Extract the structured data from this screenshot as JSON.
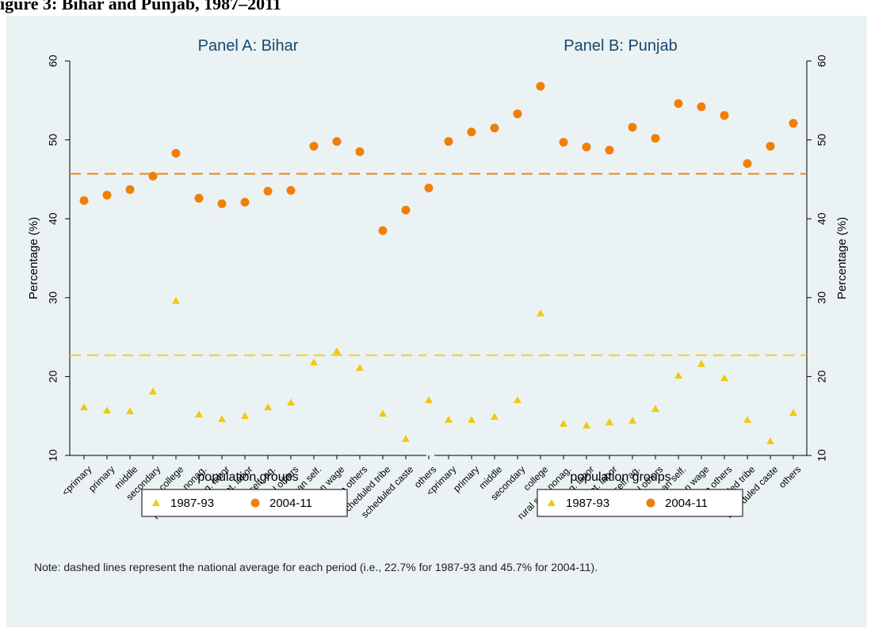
{
  "header": {
    "title": "igure 3: Bihar and Punjab, 1987–2011"
  },
  "note": "Note: dashed lines represent the national average for each period (i.e., 22.7% for 1987-93 and 45.7% for 2004-11).",
  "colors": {
    "s1987": "#f2c80f",
    "s2004": "#f07f09",
    "ref1987": "#f2c80f",
    "ref2004": "#f07f09",
    "title": "#1a476f",
    "background": "#eaf2f3"
  },
  "chart_data": [
    {
      "type": "scatter",
      "title": "Panel A: Bihar",
      "xlabel": "population groups",
      "ylabel": "Percentage (%)",
      "ylim": [
        10,
        60
      ],
      "yticks": [
        "10",
        "20",
        "30",
        "40",
        "50",
        "60"
      ],
      "axis_side": "left",
      "categories": [
        "<primary",
        "primary",
        "middle",
        "secondary",
        "college",
        "rural self. nonag.",
        "rural ag. labor",
        "rural ot. labor",
        "rural self. ag.",
        "rural others",
        "urban self.",
        "urban wage",
        "urban others",
        "scheduled tribe",
        "scheduled caste",
        "others"
      ],
      "series": [
        {
          "name": "1987-93",
          "marker": "triangle",
          "values": [
            16.1,
            15.7,
            15.6,
            18.1,
            29.6,
            15.2,
            14.6,
            15.0,
            16.1,
            16.7,
            21.8,
            23.2,
            21.1,
            15.3,
            12.1,
            17.0
          ]
        },
        {
          "name": "2004-11",
          "marker": "circle",
          "values": [
            42.3,
            43.0,
            43.7,
            45.4,
            48.3,
            42.6,
            41.9,
            42.1,
            43.5,
            43.6,
            49.2,
            49.8,
            48.5,
            38.5,
            41.1,
            43.9
          ]
        }
      ],
      "reference_lines": [
        22.7,
        45.7
      ],
      "legend": {
        "position": "bottom",
        "entries": [
          "1987-93",
          "2004-11"
        ]
      },
      "grid": false
    },
    {
      "type": "scatter",
      "title": "Panel B: Punjab",
      "xlabel": "population groups",
      "ylabel": "Percentage (%)",
      "ylim": [
        10,
        60
      ],
      "yticks": [
        "10",
        "20",
        "30",
        "40",
        "50",
        "60"
      ],
      "axis_side": "right",
      "categories": [
        "<primary",
        "primary",
        "middle",
        "secondary",
        "college",
        "rural self. nonag.",
        "rural ag. labor",
        "rural ot. labor",
        "rural self. ag.",
        "rural others",
        "urban self.",
        "urban wage",
        "urban others",
        "scheduled tribe",
        "scheduled caste",
        "others"
      ],
      "series": [
        {
          "name": "1987-93",
          "marker": "triangle",
          "values": [
            14.5,
            14.5,
            14.9,
            17.0,
            28.0,
            14.0,
            13.8,
            14.2,
            14.4,
            15.9,
            20.1,
            21.6,
            19.8,
            14.5,
            11.8,
            15.4
          ]
        },
        {
          "name": "2004-11",
          "marker": "circle",
          "values": [
            49.8,
            51.0,
            51.5,
            53.3,
            56.8,
            49.7,
            49.1,
            48.7,
            51.6,
            50.2,
            54.6,
            54.2,
            53.1,
            47.0,
            49.2,
            52.1
          ]
        }
      ],
      "reference_lines": [
        22.7,
        45.7
      ],
      "legend": {
        "position": "bottom",
        "entries": [
          "1987-93",
          "2004-11"
        ]
      },
      "grid": false
    }
  ]
}
